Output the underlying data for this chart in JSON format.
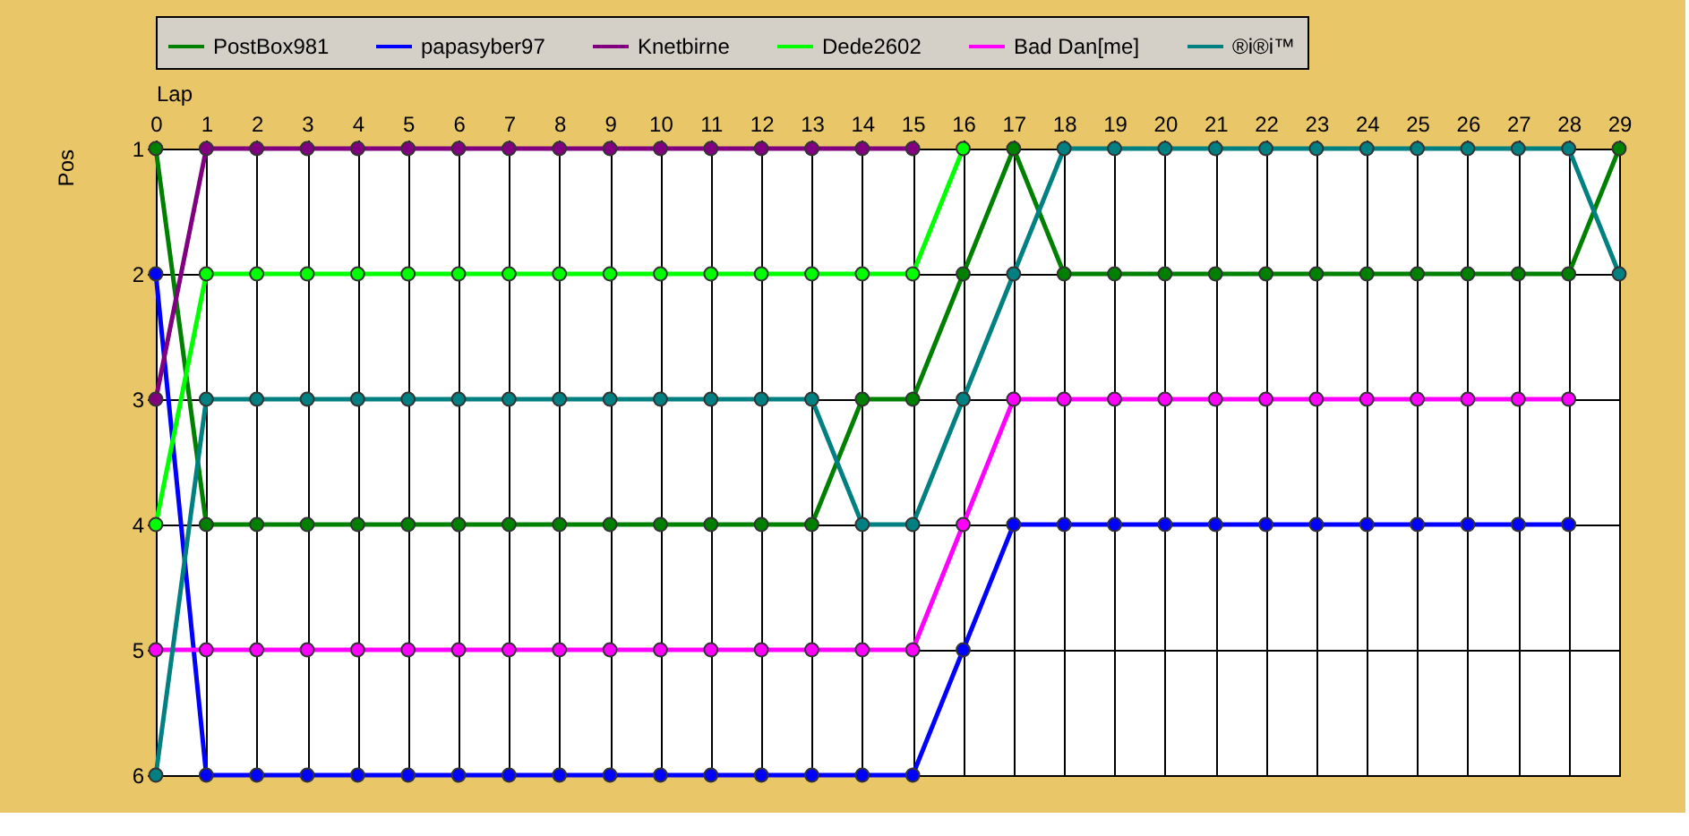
{
  "chart_data": {
    "type": "line",
    "xlabel": "Lap",
    "ylabel": "Pos",
    "x": [
      0,
      1,
      2,
      3,
      4,
      5,
      6,
      7,
      8,
      9,
      10,
      11,
      12,
      13,
      14,
      15,
      16,
      17,
      18,
      19,
      20,
      21,
      22,
      23,
      24,
      25,
      26,
      27,
      28,
      29
    ],
    "xlim": [
      0,
      29
    ],
    "xticks": [
      0,
      1,
      2,
      3,
      4,
      5,
      6,
      7,
      8,
      9,
      10,
      11,
      12,
      13,
      14,
      15,
      16,
      17,
      18,
      19,
      20,
      21,
      22,
      23,
      24,
      25,
      26,
      27,
      28,
      29
    ],
    "ylim": [
      6,
      1
    ],
    "yticks": [
      1,
      2,
      3,
      4,
      5,
      6
    ],
    "grid": true,
    "legend": "top",
    "marker": "circle",
    "line_style": "solid",
    "series": [
      {
        "name": "PostBox981",
        "color": "#008000",
        "values": [
          1,
          4,
          4,
          4,
          4,
          4,
          4,
          4,
          4,
          4,
          4,
          4,
          4,
          4,
          3,
          3,
          2,
          1,
          2,
          2,
          2,
          2,
          2,
          2,
          2,
          2,
          2,
          2,
          2,
          1
        ]
      },
      {
        "name": "papasyber97",
        "color": "#0000ff",
        "values": [
          2,
          6,
          6,
          6,
          6,
          6,
          6,
          6,
          6,
          6,
          6,
          6,
          6,
          6,
          6,
          6,
          5,
          4,
          4,
          4,
          4,
          4,
          4,
          4,
          4,
          4,
          4,
          4,
          4,
          null
        ]
      },
      {
        "name": "Knetbirne",
        "color": "#800080",
        "values": [
          3,
          1,
          1,
          1,
          1,
          1,
          1,
          1,
          1,
          1,
          1,
          1,
          1,
          1,
          1,
          1,
          null,
          null,
          null,
          null,
          null,
          null,
          null,
          null,
          null,
          null,
          null,
          null,
          null,
          null
        ]
      },
      {
        "name": "Dede2602",
        "color": "#00ff00",
        "values": [
          4,
          2,
          2,
          2,
          2,
          2,
          2,
          2,
          2,
          2,
          2,
          2,
          2,
          2,
          2,
          2,
          1,
          null,
          null,
          null,
          null,
          null,
          null,
          null,
          null,
          null,
          null,
          null,
          null,
          null
        ]
      },
      {
        "name": "Bad Dan[me]",
        "color": "#ff00ff",
        "values": [
          5,
          5,
          5,
          5,
          5,
          5,
          5,
          5,
          5,
          5,
          5,
          5,
          5,
          5,
          5,
          5,
          4,
          3,
          3,
          3,
          3,
          3,
          3,
          3,
          3,
          3,
          3,
          3,
          3,
          null
        ]
      },
      {
        "name": "®i®i™",
        "color": "#008080",
        "values": [
          6,
          3,
          3,
          3,
          3,
          3,
          3,
          3,
          3,
          3,
          3,
          3,
          3,
          3,
          4,
          4,
          3,
          2,
          1,
          1,
          1,
          1,
          1,
          1,
          1,
          1,
          1,
          1,
          1,
          2
        ]
      }
    ]
  }
}
